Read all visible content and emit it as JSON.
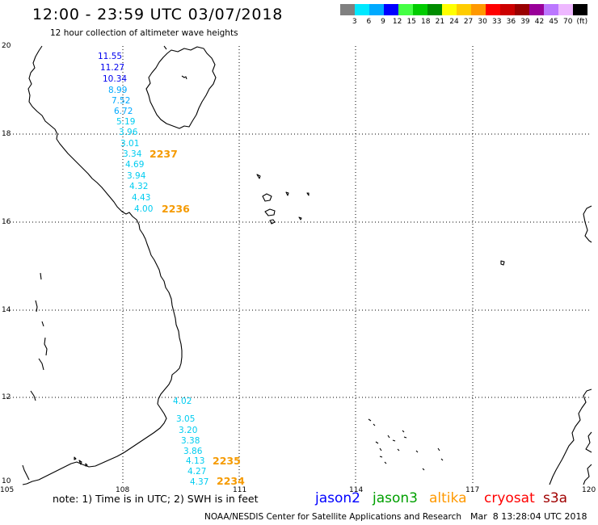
{
  "header": {
    "title": "12:00 - 23:59 UTC 03/07/2018",
    "subtitle": "12 hour collection of altimeter wave heights"
  },
  "legend": {
    "colors": [
      "#808080",
      "#00e8ff",
      "#00aaff",
      "#0000ff",
      "#44ff44",
      "#00cc00",
      "#008c00",
      "#ffff00",
      "#ffcc00",
      "#ff9900",
      "#ff0000",
      "#cc0000",
      "#990000",
      "#990099",
      "#bb77ff",
      "#eeb8ff",
      "#000000"
    ],
    "labels": [
      "3",
      "6",
      "9",
      "12",
      "15",
      "18",
      "21",
      "24",
      "27",
      "30",
      "33",
      "36",
      "39",
      "42",
      "45",
      "70"
    ],
    "unit": "(ft)"
  },
  "map": {
    "lat_labels": [
      "20",
      "18",
      "16",
      "14",
      "12",
      "10"
    ],
    "lon_labels": [
      "105",
      "108",
      "111",
      "114",
      "117",
      "120"
    ],
    "tracks": [
      {
        "readings": [
          {
            "value": "11.55",
            "color": "#0000ee"
          },
          {
            "value": "11.27",
            "color": "#0000ee"
          },
          {
            "value": "10.34",
            "color": "#0000ee"
          },
          {
            "value": "8.99",
            "color": "#00a8ff"
          },
          {
            "value": "7.52",
            "color": "#00a8ff"
          },
          {
            "value": "6.72",
            "color": "#00a8ff"
          },
          {
            "value": "5.19",
            "color": "#00ccf0"
          },
          {
            "value": "3.96",
            "color": "#00ccf0"
          },
          {
            "value": "3.01",
            "color": "#00ccf0"
          },
          {
            "value": "3.34",
            "color": "#00ccf0"
          },
          {
            "value": "4.69",
            "color": "#00ccf0"
          },
          {
            "value": "3.94",
            "color": "#00ccf0"
          },
          {
            "value": "4.32",
            "color": "#00ccf0"
          },
          {
            "value": "4.43",
            "color": "#00ccf0"
          },
          {
            "value": "4.00",
            "color": "#00ccf0"
          }
        ],
        "times": [
          "2237",
          "2236"
        ],
        "time_color": "#f59a00"
      },
      {
        "readings": [
          {
            "value": "4.02",
            "color": "#00ccf0"
          },
          {
            "value": "3.05",
            "color": "#00ccf0"
          },
          {
            "value": "3.20",
            "color": "#00ccf0"
          },
          {
            "value": "3.38",
            "color": "#00ccf0"
          },
          {
            "value": "3.86",
            "color": "#00ccf0"
          },
          {
            "value": "4.13",
            "color": "#00ccf0"
          },
          {
            "value": "4.27",
            "color": "#00ccf0"
          },
          {
            "value": "4.37",
            "color": "#00ccf0"
          }
        ],
        "times": [
          "2235",
          "2234"
        ],
        "time_color": "#f59a00"
      }
    ]
  },
  "note": "note: 1) Time is in UTC; 2) SWH is in feet",
  "satellites": [
    {
      "name": "jason2",
      "color": "#0000ff"
    },
    {
      "name": "jason3",
      "color": "#00a000"
    },
    {
      "name": "altika",
      "color": "#ff9900"
    },
    {
      "name": "cryosat",
      "color": "#ff0000"
    },
    {
      "name": "s3a",
      "color": "#a00000"
    }
  ],
  "footer": {
    "credit": "NOAA/NESDIS Center for Satellite Applications and Research",
    "timestamp": "Mar  8 13:28:04 UTC 2018"
  }
}
